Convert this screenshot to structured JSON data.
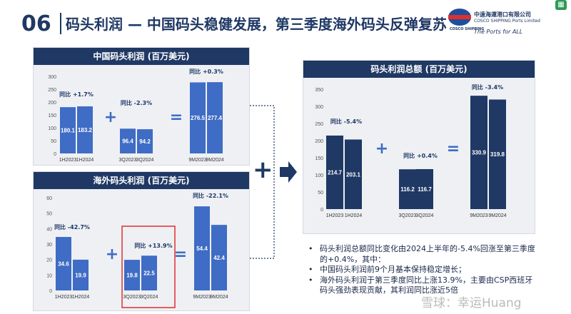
{
  "header": {
    "page_number": "06",
    "title": "码头利润 — 中国码头稳健发展，第三季度海外码头反弹复苏"
  },
  "logo": {
    "badge_text": "COSCO SHIPPING",
    "cn_name": "中遠海運港口有限公司",
    "en_name": "COSCO SHIPPING Ports Limited",
    "tagline": "The Ports for ALL"
  },
  "colors": {
    "navy": "#1f3864",
    "bar": "#3f6cc4",
    "bar_dark": "#1f3864",
    "highlight": "#e02f2f"
  },
  "chart_data": [
    {
      "type": "bar",
      "title": "中国码头利润 (百万美元)",
      "ylim": [
        0,
        300
      ],
      "yticks": [
        "0",
        "50",
        "100",
        "150",
        "200",
        "250",
        "300"
      ],
      "categories": [
        "1H2023",
        "1H2024",
        "3Q2023",
        "3Q2024",
        "9M2023",
        "9M2024"
      ],
      "values": [
        180.1,
        183.2,
        96.4,
        94.2,
        276.5,
        277.4
      ],
      "value_labels": [
        "180.1",
        "183.2",
        "96.4",
        "94.2",
        "276.5",
        "277.4"
      ],
      "annotations": [
        "同比 +1.7%",
        "同比 -2.3%",
        "同比 +0.3%"
      ],
      "operators": [
        "+",
        "="
      ]
    },
    {
      "type": "bar",
      "title": "海外码头利润 (百万美元)",
      "ylim": [
        0,
        60
      ],
      "yticks": [
        "0",
        "10",
        "20",
        "30",
        "40",
        "50",
        "60"
      ],
      "categories": [
        "1H2023",
        "1H2024",
        "3Q2023",
        "3Q2024",
        "9M2023",
        "9M2024"
      ],
      "values": [
        34.6,
        19.9,
        19.8,
        22.5,
        54.4,
        42.4
      ],
      "value_labels": [
        "34.6",
        "19.9",
        "19.8",
        "22.5",
        "54.4",
        "42.4"
      ],
      "annotations": [
        "同比 -42.7%",
        "同比 +13.9%",
        "同比 -22.1%"
      ],
      "operators": [
        "+",
        "="
      ]
    },
    {
      "type": "bar",
      "title": "码头利润总额 (百万美元)",
      "ylim": [
        0,
        350
      ],
      "yticks": [
        "0",
        "50",
        "100",
        "150",
        "200",
        "250",
        "300",
        "350"
      ],
      "categories": [
        "1H2023",
        "1H2024",
        "3Q2023",
        "3Q2024",
        "9M2023",
        "9M2024"
      ],
      "values": [
        214.7,
        203.1,
        116.2,
        116.7,
        330.9,
        319.8
      ],
      "value_labels": [
        "214.7",
        "203.1",
        "116.2",
        "116.7",
        "330.9",
        "319.8"
      ],
      "annotations": [
        "同比 -5.4%",
        "同比 +0.4%",
        "同比 -3.4%"
      ],
      "operators": [
        "+",
        "="
      ]
    }
  ],
  "connector": {
    "plus": "+"
  },
  "bullets": [
    "码头利润总额同比变化由2024上半年的-5.4%回涨至第三季度的+0.4%，其中：",
    "中国码头利润前9个月基本保持稳定增长；",
    "海外码头利润于第三季度同比上涨13.9%，主要由CSP西班牙码头强劲表现贡献，其利润同比涨近5倍"
  ],
  "watermark": "雪球：幸运Huang"
}
